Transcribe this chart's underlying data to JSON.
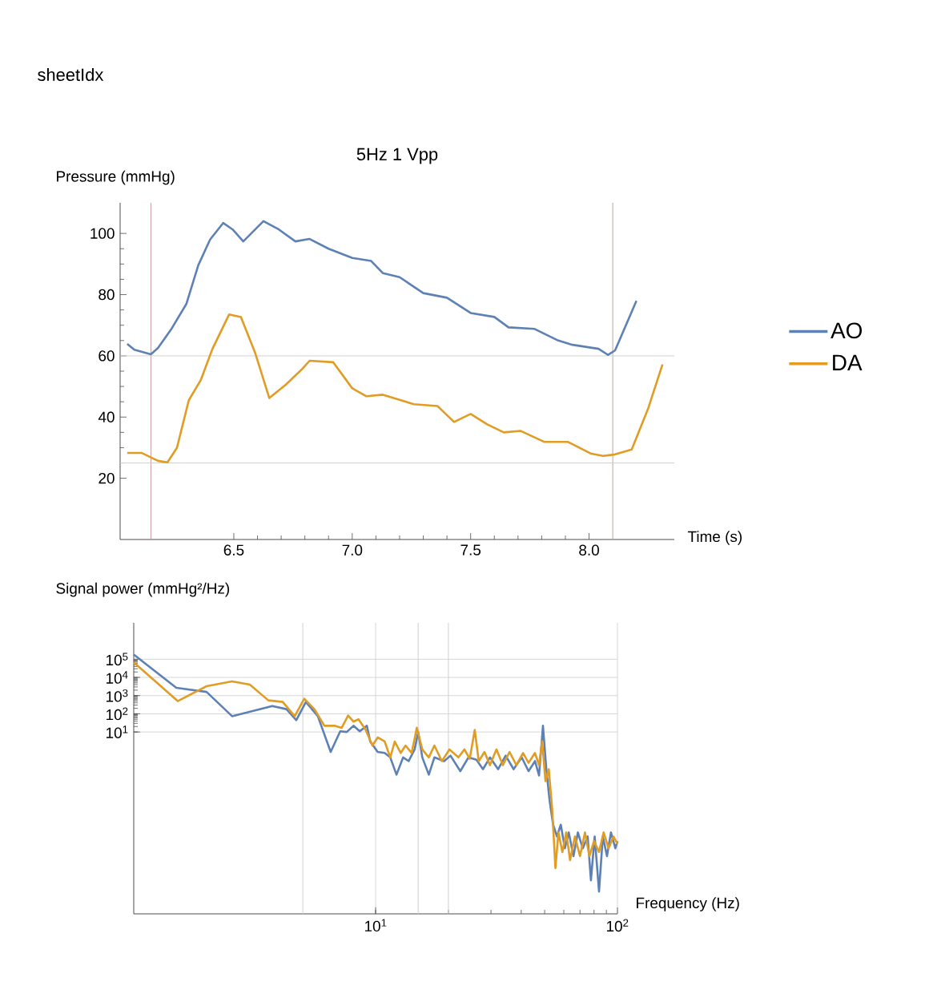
{
  "chart_data": [
    {
      "type": "line",
      "title": "5Hz 1 Vpp",
      "xlabel": "Time (s)",
      "ylabel": "Pressure (mmHg)",
      "annotations": [
        "sheetIdx"
      ],
      "xlim": [
        6.02,
        8.36
      ],
      "ylim": [
        0,
        110
      ],
      "xticks": [
        6.5,
        {
          "value": 7,
          "label": "7.0"
        },
        7.5,
        {
          "value": 8,
          "label": "8.0"
        }
      ],
      "yticks": [
        20,
        40,
        60,
        80,
        100
      ],
      "legend": "right",
      "ref_lines": [
        {
          "axis": "x",
          "value": 6.15,
          "color": "#c8a0a0"
        },
        {
          "axis": "x",
          "value": 8.1,
          "color": "#c8a0a0"
        },
        {
          "axis": "y",
          "value": 60,
          "color": "#d0d0d0"
        },
        {
          "axis": "y",
          "value": 25,
          "color": "#d0d0d0"
        }
      ],
      "series": [
        {
          "name": "AO",
          "color": "#5e81b5",
          "x": [
            6.05,
            6.08,
            6.15,
            6.18,
            6.235,
            6.3,
            6.35,
            6.4,
            6.455,
            6.495,
            6.54,
            6.625,
            6.69,
            6.76,
            6.82,
            6.9,
            7.0,
            7.08,
            7.13,
            7.2,
            7.3,
            7.4,
            7.5,
            7.6,
            7.66,
            7.77,
            7.87,
            7.93,
            8.04,
            8.08,
            8.11,
            8.2
          ],
          "values": [
            63.9,
            62,
            60.5,
            62.6,
            68.6,
            77,
            89.6,
            98,
            103.4,
            101.3,
            97.4,
            104,
            101.3,
            97.4,
            98.2,
            95,
            92,
            91,
            87,
            85.7,
            80.5,
            79,
            74,
            72.7,
            69.3,
            68.8,
            65,
            63.6,
            62.3,
            60.3,
            61.8,
            78
          ]
        },
        {
          "name": "DA",
          "color": "#e19c24",
          "x": [
            6.05,
            6.11,
            6.18,
            6.22,
            6.26,
            6.31,
            6.36,
            6.41,
            6.48,
            6.53,
            6.59,
            6.65,
            6.72,
            6.79,
            6.82,
            6.92,
            7.0,
            7.06,
            7.13,
            7.26,
            7.36,
            7.43,
            7.5,
            7.57,
            7.64,
            7.71,
            7.81,
            7.91,
            8.01,
            8.06,
            8.11,
            8.18,
            8.25,
            8.31
          ],
          "values": [
            28.3,
            28.3,
            25.7,
            25.2,
            30,
            45.5,
            52,
            62.3,
            73.5,
            72.7,
            61,
            46.2,
            50.6,
            55.8,
            58.4,
            57.9,
            49.4,
            46.8,
            47.3,
            44.2,
            43.6,
            38.4,
            41,
            37.6,
            35,
            35.5,
            31.9,
            31.9,
            28,
            27.3,
            27.8,
            29.4,
            42.9,
            57.2
          ]
        }
      ]
    },
    {
      "type": "line",
      "xlabel": "Frequency (Hz)",
      "ylabel": "Signal power (mmHg²/Hz)",
      "log": "xy",
      "xlim": [
        1,
        100
      ],
      "ylim": [
        1e-09,
        10000000.0
      ],
      "xticks": [
        {
          "value": 10,
          "label": "10$^{1}$"
        },
        {
          "value": 100,
          "label": "10$^{2}$"
        }
      ],
      "yticks": [
        {
          "value": 10,
          "label": "10$^{1}$"
        },
        {
          "value": 100,
          "label": "10$^{2}$"
        },
        {
          "value": 1000,
          "label": "10$^{3}$"
        },
        {
          "value": 10000,
          "label": "10$^{4}$"
        },
        {
          "value": 100000,
          "label": "10$^{5}$"
        }
      ],
      "grid": true,
      "ref_lines": [
        {
          "axis": "x",
          "value": 5,
          "color": "#d0d0d0"
        },
        {
          "axis": "x",
          "value": 15,
          "color": "#d0d0d0"
        },
        {
          "axis": "x",
          "value": 20,
          "color": "#d0d0d0"
        }
      ],
      "series": [
        {
          "color": "#5e81b5",
          "x": [
            1,
            1.5,
            2.0,
            2.55,
            3.74,
            4.28,
            4.7,
            5.15,
            5.77,
            6.52,
            7.14,
            7.6,
            8.1,
            8.6,
            9.2,
            9.5,
            10.2,
            10.9,
            11.5,
            12.2,
            13,
            13.7,
            14.5,
            15,
            15.6,
            16.6,
            17.5,
            19.2,
            20.4,
            22.4,
            24.2,
            26.1,
            27.8,
            29.7,
            32.1,
            34.5,
            37.2,
            40.2,
            42.9,
            45.6,
            47.4,
            49.2,
            50.8,
            52.4,
            54.2,
            56.2,
            58.3,
            60.6,
            62.9,
            65.8,
            68.6,
            71.9,
            75.3,
            77.7,
            80.5,
            83.9,
            87,
            90.5,
            94,
            98,
            100
          ],
          "values": [
            180000.0,
            2700.0,
            1600.0,
            74,
            270,
            180,
            45,
            450,
            74,
            0.8,
            11,
            10,
            22,
            11,
            22,
            3,
            0.8,
            0.7,
            0.4,
            0.045,
            0.4,
            0.25,
            1.1,
            10,
            0.4,
            0.045,
            0.4,
            0.25,
            0.5,
            0.07,
            0.4,
            0.3,
            0.09,
            0.4,
            0.09,
            0.5,
            0.09,
            0.4,
            0.07,
            0.25,
            0.04,
            22,
            0.09,
            0.0017,
            8e-05,
            1.8e-05,
            8e-05,
            4e-06,
            3e-05,
            1.5e-06,
            3e-05,
            4e-06,
            1.8e-05,
            7e-08,
            1.8e-05,
            1.7e-08,
            1.8e-05,
            1.5e-06,
            3e-05,
            4e-06,
            1e-05
          ]
        },
        {
          "color": "#e19c24",
          "x": [
            1,
            1.52,
            2.0,
            2.55,
            3.02,
            3.6,
            4.13,
            4.63,
            5.07,
            5.6,
            6.14,
            6.77,
            7.24,
            7.7,
            8.1,
            8.5,
            9.1,
            9.7,
            10.2,
            10.9,
            11.5,
            12.0,
            12.7,
            13.3,
            14.1,
            14.8,
            15.6,
            16.6,
            17.5,
            18.8,
            20.2,
            22.0,
            23.3,
            24.5,
            25.7,
            26.7,
            28.2,
            29.7,
            31.6,
            33.6,
            35.8,
            38.2,
            40.7,
            42.9,
            45.6,
            47.4,
            48.8,
            50.4,
            52,
            53.7,
            55.4,
            57.0,
            59.2,
            61.4,
            63.7,
            66.7,
            70,
            73.4,
            76.6,
            80,
            83.9,
            87.7,
            91.9,
            96.3,
            100
          ],
          "values": [
            68000.0,
            500,
            3300.0,
            6000.0,
            4000.0,
            550,
            450,
            74,
            680,
            170,
            22,
            22,
            17,
            80,
            37,
            50,
            13,
            1.8,
            5,
            3,
            0.4,
            3,
            0.7,
            1.8,
            0.7,
            17,
            1.1,
            0.4,
            1.8,
            0.25,
            1.1,
            0.4,
            1.1,
            0.33,
            13,
            0.25,
            0.8,
            0.15,
            1.1,
            0.15,
            0.8,
            0.15,
            0.7,
            0.2,
            0.7,
            0.15,
            3,
            0.02,
            0.09,
            0.0006,
            3.3e-07,
            3e-05,
            2.5e-06,
            3e-05,
            9e-07,
            1.8e-05,
            1.5e-06,
            3e-05,
            1.5e-06,
            1e-05,
            2.5e-06,
            3e-05,
            4e-06,
            1.8e-05,
            7e-06
          ]
        }
      ]
    }
  ]
}
